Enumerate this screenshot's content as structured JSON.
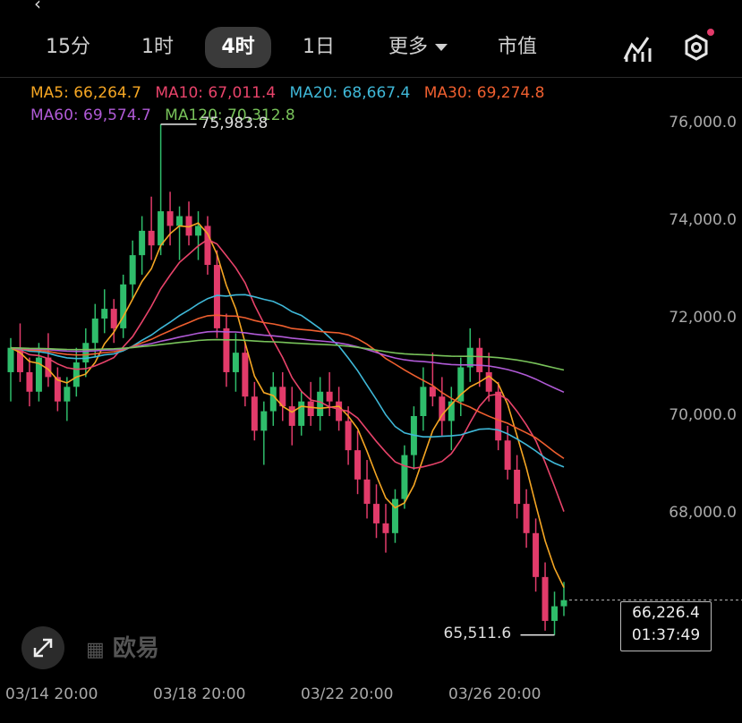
{
  "tabs": [
    {
      "label": "15分",
      "active": false
    },
    {
      "label": "1时",
      "active": false
    },
    {
      "label": "4时",
      "active": true
    },
    {
      "label": "1日",
      "active": false
    },
    {
      "label": "更多",
      "active": false
    },
    {
      "label": "市值",
      "active": false
    }
  ],
  "icons": [
    "chart-icon",
    "settings-hexagon-icon",
    "expand-icon"
  ],
  "logo_text": "欧易",
  "ma": [
    {
      "label": "MA5: 66,264.7",
      "color": "#f5a623"
    },
    {
      "label": "MA10: 67,011.4",
      "color": "#e8436a"
    },
    {
      "label": "MA20: 68,667.4",
      "color": "#3fb8d8"
    },
    {
      "label": "MA30: 69,274.8",
      "color": "#ef5f2f"
    },
    {
      "label": "MA60: 69,574.7",
      "color": "#b05ad6"
    },
    {
      "label": "MA120: 70,312.8",
      "color": "#78c25a"
    }
  ],
  "price_box": {
    "price": "66,226.4",
    "countdown": "01:37:49"
  },
  "chart_data": {
    "type": "candlestick",
    "y_ticks": [
      "76,000.0",
      "74,000.0",
      "72,000.0",
      "70,000.0",
      "68,000.0"
    ],
    "y_tick_values": [
      76000,
      74000,
      72000,
      70000,
      68000
    ],
    "x_ticks": [
      "03/14 20:00",
      "03/18 20:00",
      "03/22 20:00",
      "03/26 20:00"
    ],
    "high_label": "75,983.8",
    "low_label": "65,511.6",
    "last_price": 66226.4,
    "up_color": "#2fbd6b",
    "down_color": "#e23b6a",
    "candles_note": "4-hour candles; values estimated from chart",
    "candles": [
      [
        70900,
        71600,
        70300,
        71400
      ],
      [
        71400,
        71900,
        70700,
        70900
      ],
      [
        70900,
        71200,
        70200,
        70500
      ],
      [
        70500,
        71500,
        70300,
        71200
      ],
      [
        71200,
        71700,
        70600,
        70800
      ],
      [
        70800,
        71000,
        70100,
        70300
      ],
      [
        70300,
        70800,
        69900,
        70600
      ],
      [
        70600,
        71400,
        70400,
        71100
      ],
      [
        71100,
        71800,
        70800,
        71500
      ],
      [
        71500,
        72300,
        71200,
        72000
      ],
      [
        72000,
        72600,
        71700,
        72200
      ],
      [
        72200,
        72400,
        71500,
        71800
      ],
      [
        71800,
        72900,
        71600,
        72700
      ],
      [
        72700,
        73600,
        72400,
        73300
      ],
      [
        73300,
        74100,
        72900,
        73800
      ],
      [
        73800,
        74500,
        73200,
        73500
      ],
      [
        73500,
        75984,
        73300,
        74200
      ],
      [
        74200,
        74600,
        73500,
        73900
      ],
      [
        73900,
        74300,
        73200,
        74100
      ],
      [
        74100,
        74400,
        73500,
        73700
      ],
      [
        73700,
        74200,
        73200,
        73900
      ],
      [
        73900,
        74100,
        72900,
        73100
      ],
      [
        73100,
        73400,
        71600,
        71800
      ],
      [
        71800,
        72100,
        70600,
        70900
      ],
      [
        70900,
        71700,
        70500,
        71300
      ],
      [
        71300,
        71500,
        70200,
        70400
      ],
      [
        70400,
        70700,
        69500,
        69700
      ],
      [
        69700,
        70300,
        69000,
        70100
      ],
      [
        70100,
        70900,
        69800,
        70600
      ],
      [
        70600,
        70900,
        69900,
        70200
      ],
      [
        70200,
        70600,
        69400,
        69800
      ],
      [
        69800,
        70500,
        69600,
        70300
      ],
      [
        70300,
        70700,
        69800,
        70000
      ],
      [
        70000,
        70800,
        69700,
        70500
      ],
      [
        70500,
        70900,
        70000,
        70300
      ],
      [
        70300,
        70600,
        69700,
        69900
      ],
      [
        69900,
        70200,
        69000,
        69300
      ],
      [
        69300,
        69700,
        68400,
        68700
      ],
      [
        68700,
        69100,
        67900,
        68200
      ],
      [
        68200,
        68600,
        67500,
        67800
      ],
      [
        67800,
        68200,
        67200,
        67600
      ],
      [
        67600,
        68500,
        67400,
        68300
      ],
      [
        68300,
        69400,
        68100,
        69200
      ],
      [
        69200,
        70200,
        68900,
        70000
      ],
      [
        70000,
        71000,
        69700,
        70600
      ],
      [
        70600,
        71300,
        70200,
        70400
      ],
      [
        70400,
        70800,
        69600,
        69900
      ],
      [
        69900,
        70600,
        69300,
        70300
      ],
      [
        70300,
        71200,
        70000,
        71000
      ],
      [
        71000,
        71800,
        70700,
        71400
      ],
      [
        71400,
        71600,
        70600,
        70900
      ],
      [
        70900,
        71300,
        70300,
        70500
      ],
      [
        70500,
        70700,
        69300,
        69500
      ],
      [
        69500,
        69800,
        68700,
        68900
      ],
      [
        68900,
        69200,
        67900,
        68200
      ],
      [
        68200,
        68500,
        67300,
        67600
      ],
      [
        67600,
        67900,
        66400,
        66700
      ],
      [
        66700,
        67000,
        65600,
        65800
      ],
      [
        65800,
        66400,
        65512,
        66100
      ],
      [
        66100,
        66600,
        65900,
        66226
      ]
    ]
  }
}
